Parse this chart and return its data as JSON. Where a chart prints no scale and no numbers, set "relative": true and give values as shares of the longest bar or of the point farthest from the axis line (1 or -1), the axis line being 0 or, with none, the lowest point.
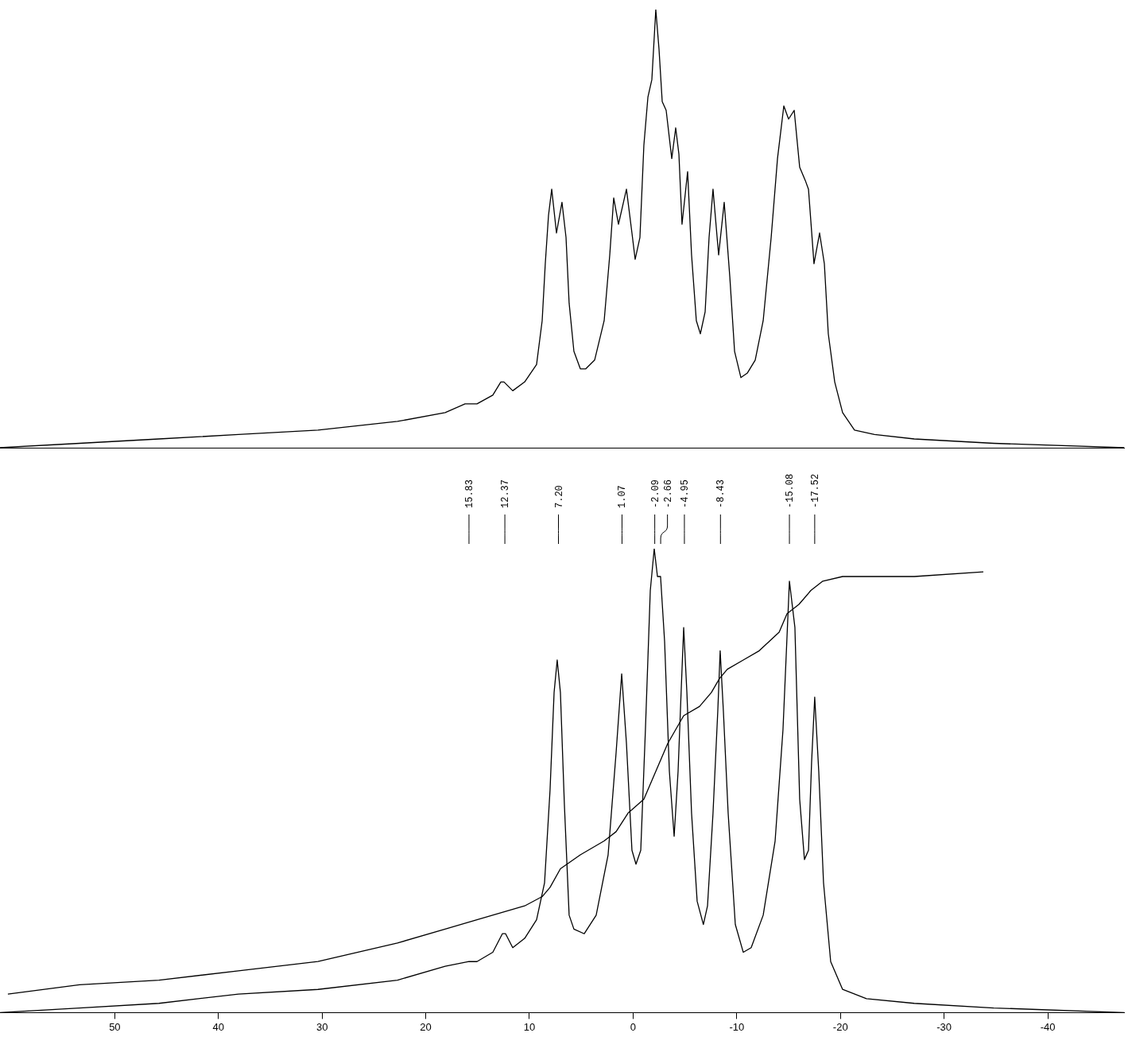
{
  "chart_data": [
    {
      "type": "line",
      "relative": true,
      "xlim": [
        61.07,
        -47.36
      ],
      "xticks": [
        50,
        40,
        30,
        20,
        10,
        0,
        -10,
        -20,
        -30,
        -40
      ],
      "tick_labels": false,
      "grid": false,
      "legend": false,
      "marker": "none",
      "line_style": "solid",
      "series": [
        {
          "color": "#000000",
          "x": [
            61.07,
            53.4,
            45.74,
            38.07,
            30.4,
            22.73,
            18.13,
            16.21,
            15.06,
            13.53,
            12.76,
            12.45,
            11.61,
            10.46,
            9.31,
            8.77,
            8.47,
            8.16,
            7.85,
            7.39,
            6.86,
            6.47,
            6.17,
            5.71,
            5.09,
            4.56,
            3.71,
            2.79,
            2.25,
            1.87,
            1.41,
            0.64,
            0.11,
            -0.2,
            -0.66,
            -1.04,
            -1.43,
            -1.81,
            -2.19,
            -2.5,
            -2.81,
            -3.19,
            -3.73,
            -4.11,
            -4.42,
            -4.72,
            -5.26,
            -5.64,
            -6.1,
            -6.49,
            -6.95,
            -7.33,
            -7.71,
            -8.25,
            -8.79,
            -9.33,
            -9.79,
            -10.4,
            -11.01,
            -11.78,
            -12.55,
            -13.32,
            -13.93,
            -14.54,
            -15.0,
            -15.54,
            -16.07,
            -16.61,
            -16.92,
            -17.45,
            -17.99,
            -18.45,
            -18.83,
            -19.45,
            -20.21,
            -21.36,
            -23.28,
            -27.12,
            -34.79,
            -47.36
          ],
          "values": [
            0.0,
            0.01,
            0.02,
            0.03,
            0.04,
            0.06,
            0.08,
            0.1,
            0.1,
            0.12,
            0.15,
            0.15,
            0.13,
            0.15,
            0.19,
            0.29,
            0.42,
            0.53,
            0.59,
            0.49,
            0.56,
            0.48,
            0.33,
            0.22,
            0.18,
            0.18,
            0.2,
            0.29,
            0.44,
            0.57,
            0.51,
            0.59,
            0.49,
            0.43,
            0.48,
            0.69,
            0.8,
            0.84,
            1.0,
            0.91,
            0.79,
            0.77,
            0.66,
            0.73,
            0.67,
            0.51,
            0.63,
            0.44,
            0.29,
            0.26,
            0.31,
            0.48,
            0.59,
            0.44,
            0.56,
            0.39,
            0.22,
            0.16,
            0.17,
            0.2,
            0.29,
            0.48,
            0.66,
            0.78,
            0.75,
            0.77,
            0.64,
            0.61,
            0.59,
            0.42,
            0.49,
            0.42,
            0.26,
            0.15,
            0.08,
            0.04,
            0.03,
            0.02,
            0.01,
            0.0
          ]
        }
      ]
    },
    {
      "type": "line",
      "relative": true,
      "xlim": [
        61.07,
        -47.36
      ],
      "xticks": [
        50,
        40,
        30,
        20,
        10,
        0,
        -10,
        -20,
        -30,
        -40
      ],
      "tick_labels": "x",
      "grid": false,
      "legend": false,
      "marker": "none",
      "line_style": "solid",
      "annotations": [
        {
          "text": "15.83",
          "x": 15.83
        },
        {
          "text": "12.37",
          "x": 12.37
        },
        {
          "text": "7.20",
          "x": 7.2
        },
        {
          "text": "1.07",
          "x": 1.07
        },
        {
          "text": "-2.09",
          "x": -2.09
        },
        {
          "text": "-2.66",
          "x": -2.66
        },
        {
          "text": "-4.95",
          "x": -4.95
        },
        {
          "text": "-8.43",
          "x": -8.43
        },
        {
          "text": "-15.08",
          "x": -15.08
        },
        {
          "text": "-17.52",
          "x": -17.52
        }
      ],
      "series": [
        {
          "color": "#000000",
          "x": [
            61.07,
            53.4,
            45.74,
            38.07,
            30.4,
            22.73,
            18.13,
            15.83,
            15.06,
            13.53,
            12.61,
            12.3,
            11.61,
            10.46,
            9.31,
            8.54,
            8.01,
            7.62,
            7.32,
            7.01,
            6.63,
            6.17,
            5.71,
            4.71,
            3.56,
            2.41,
            1.64,
            1.1,
            0.64,
            0.11,
            -0.28,
            -0.74,
            -1.19,
            -1.66,
            -2.04,
            -2.35,
            -2.65,
            -3.04,
            -3.5,
            -3.96,
            -4.34,
            -4.65,
            -4.88,
            -5.19,
            -5.64,
            -6.18,
            -6.78,
            -7.18,
            -7.71,
            -8.17,
            -8.4,
            -8.71,
            -9.17,
            -9.86,
            -10.63,
            -11.39,
            -12.55,
            -13.7,
            -14.46,
            -15.08,
            -15.61,
            -16.07,
            -16.53,
            -16.92,
            -17.22,
            -17.52,
            -17.91,
            -18.37,
            -19.06,
            -20.21,
            -22.51,
            -27.12,
            -34.79,
            -47.36
          ],
          "values": [
            0.0,
            0.01,
            0.02,
            0.04,
            0.05,
            0.07,
            0.1,
            0.11,
            0.11,
            0.13,
            0.17,
            0.17,
            0.14,
            0.16,
            0.2,
            0.28,
            0.48,
            0.69,
            0.76,
            0.69,
            0.45,
            0.21,
            0.18,
            0.17,
            0.21,
            0.34,
            0.56,
            0.73,
            0.58,
            0.35,
            0.32,
            0.35,
            0.61,
            0.91,
            1.0,
            0.94,
            0.94,
            0.8,
            0.52,
            0.38,
            0.52,
            0.7,
            0.83,
            0.69,
            0.43,
            0.24,
            0.19,
            0.23,
            0.43,
            0.65,
            0.78,
            0.65,
            0.43,
            0.19,
            0.13,
            0.14,
            0.21,
            0.37,
            0.61,
            0.93,
            0.83,
            0.46,
            0.33,
            0.35,
            0.54,
            0.68,
            0.52,
            0.28,
            0.11,
            0.05,
            0.03,
            0.02,
            0.01,
            0.0
          ]
        },
        {
          "color": "#000000",
          "x": [
            60.31,
            53.4,
            45.74,
            38.07,
            30.4,
            22.73,
            18.13,
            15.06,
            10.46,
            8.77,
            8.01,
            7.01,
            5.09,
            2.79,
            1.64,
            0.49,
            -1.04,
            -2.19,
            -3.34,
            -4.88,
            -6.41,
            -7.55,
            -8.33,
            -9.09,
            -10.63,
            -12.17,
            -14.09,
            -14.85,
            -16.0,
            -17.15,
            -18.3,
            -20.21,
            -23.28,
            -27.12,
            -33.79
          ],
          "values": [
            0.04,
            0.06,
            0.07,
            0.09,
            0.11,
            0.15,
            0.18,
            0.2,
            0.23,
            0.25,
            0.27,
            0.31,
            0.34,
            0.37,
            0.39,
            0.43,
            0.46,
            0.52,
            0.58,
            0.64,
            0.66,
            0.69,
            0.72,
            0.74,
            0.76,
            0.78,
            0.82,
            0.86,
            0.88,
            0.91,
            0.93,
            0.94,
            0.94,
            0.94,
            0.95
          ]
        }
      ]
    }
  ]
}
